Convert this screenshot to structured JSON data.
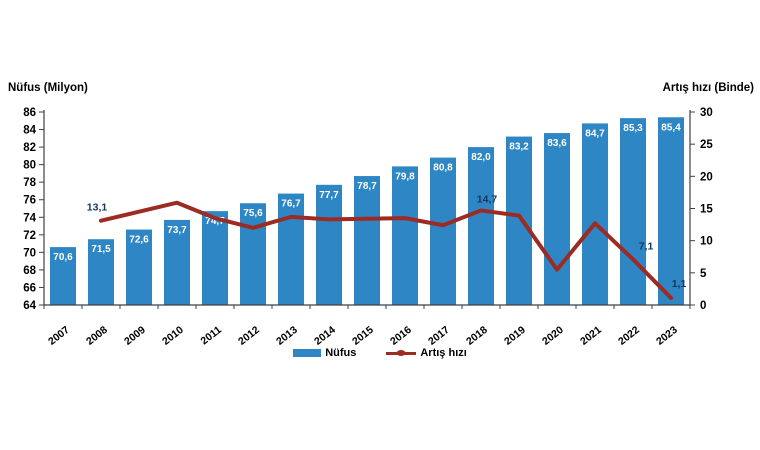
{
  "chart_data": {
    "type": "bar-line",
    "title": "",
    "categories": [
      "2007",
      "2008",
      "2009",
      "2010",
      "2011",
      "2012",
      "2013",
      "2014",
      "2015",
      "2016",
      "2017",
      "2018",
      "2019",
      "2020",
      "2021",
      "2022",
      "2023"
    ],
    "series": [
      {
        "name": "Nüfus",
        "type": "bar",
        "axis": "left",
        "color": "#2E86C4",
        "values": [
          70.6,
          71.5,
          72.6,
          73.7,
          74.7,
          75.6,
          76.7,
          77.7,
          78.7,
          79.8,
          80.8,
          82.0,
          83.2,
          83.6,
          84.7,
          85.3,
          85.4
        ],
        "value_labels": [
          "70,6",
          "71,5",
          "72,6",
          "73,7",
          "74,7",
          "75,6",
          "76,7",
          "77,7",
          "78,7",
          "79,8",
          "80,8",
          "82,0",
          "83,2",
          "83,6",
          "84,7",
          "85,3",
          "85,4"
        ],
        "label_color": "#ffffff"
      },
      {
        "name": "Artış hızı",
        "type": "line",
        "axis": "right",
        "color": "#9C2B23",
        "values": [
          null,
          13.1,
          14.5,
          15.9,
          13.5,
          12.0,
          13.7,
          13.3,
          13.4,
          13.5,
          12.4,
          14.7,
          13.9,
          5.5,
          12.7,
          7.1,
          1.1
        ],
        "value_labels": [
          null,
          "13,1",
          null,
          null,
          null,
          null,
          null,
          null,
          null,
          null,
          null,
          "14,7",
          null,
          null,
          null,
          "7,1",
          "1,1"
        ],
        "label_color": "#17375E"
      }
    ],
    "ylabel_left": "Nüfus (Milyon)",
    "ylabel_right": "Artış hızı (Binde)",
    "y_left": {
      "min": 64,
      "max": 86,
      "step": 2
    },
    "y_right": {
      "min": 0,
      "max": 30,
      "step": 5
    },
    "grid": false,
    "legend_position": "bottom",
    "axis_color": "#404040",
    "tick_label_color": "#000000"
  }
}
